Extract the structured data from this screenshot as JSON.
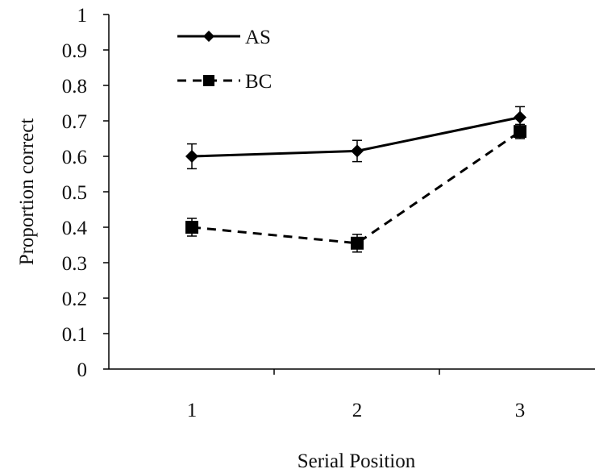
{
  "chart_data": {
    "type": "line",
    "title": "",
    "xlabel": "Serial Position",
    "ylabel": "Proportion correct",
    "categories": [
      "1",
      "2",
      "3"
    ],
    "ylim": [
      0,
      1
    ],
    "yticks": [
      "0",
      "0.1",
      "0.2",
      "0.3",
      "0.4",
      "0.5",
      "0.6",
      "0.7",
      "0.8",
      "0.9",
      "1"
    ],
    "grid": false,
    "legend": "top-left",
    "series": [
      {
        "name": "AS",
        "values": [
          0.6,
          0.615,
          0.71
        ],
        "errors": [
          0.035,
          0.03,
          0.03
        ],
        "marker": "diamond",
        "line": "solid",
        "color": "#000000"
      },
      {
        "name": "BC",
        "values": [
          0.4,
          0.355,
          0.67
        ],
        "errors": [
          0.025,
          0.025,
          0.02
        ],
        "marker": "square",
        "line": "dashed",
        "color": "#000000"
      }
    ]
  }
}
